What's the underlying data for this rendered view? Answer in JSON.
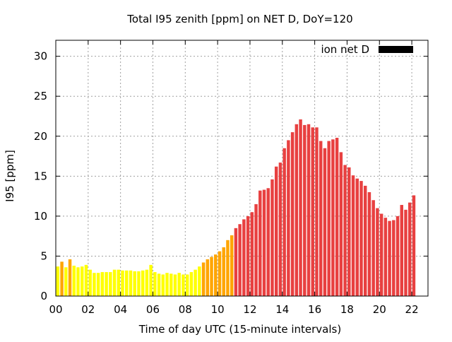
{
  "chart_data": {
    "type": "bar",
    "title": "Total I95 zenith [ppm] on NET D, DoY=120",
    "xlabel": "Time of day UTC (15-minute intervals)",
    "ylabel": "I95 [ppm]",
    "xlim": [
      0,
      92
    ],
    "ylim": [
      0,
      32
    ],
    "x_ticks": [
      {
        "pos": 0,
        "label": "00"
      },
      {
        "pos": 8,
        "label": "02"
      },
      {
        "pos": 16,
        "label": "04"
      },
      {
        "pos": 24,
        "label": "06"
      },
      {
        "pos": 32,
        "label": "08"
      },
      {
        "pos": 40,
        "label": "10"
      },
      {
        "pos": 48,
        "label": "12"
      },
      {
        "pos": 56,
        "label": "14"
      },
      {
        "pos": 64,
        "label": "16"
      },
      {
        "pos": 72,
        "label": "18"
      },
      {
        "pos": 80,
        "label": "20"
      },
      {
        "pos": 88,
        "label": "22"
      }
    ],
    "y_ticks": [
      {
        "pos": 0,
        "label": "0"
      },
      {
        "pos": 5,
        "label": "5"
      },
      {
        "pos": 10,
        "label": "10"
      },
      {
        "pos": 15,
        "label": "15"
      },
      {
        "pos": 20,
        "label": "20"
      },
      {
        "pos": 25,
        "label": "25"
      },
      {
        "pos": 30,
        "label": "30"
      }
    ],
    "grid": true,
    "legend": {
      "label": "ion net D",
      "color": "#000000",
      "placement": "top-right"
    },
    "color_scale": {
      "low": "#ffff00",
      "mid": "#ffa500",
      "high": "#e84040",
      "mid_threshold": 4,
      "high_threshold": 8
    },
    "values": [
      3.7,
      4.3,
      3.6,
      4.6,
      3.8,
      3.6,
      3.7,
      3.9,
      3.3,
      2.9,
      2.9,
      3.0,
      3.0,
      3.0,
      3.3,
      3.3,
      3.2,
      3.2,
      3.2,
      3.1,
      3.1,
      3.2,
      3.3,
      3.9,
      3.0,
      2.8,
      2.7,
      2.9,
      2.8,
      2.7,
      2.9,
      2.7,
      2.7,
      3.0,
      3.3,
      3.7,
      4.2,
      4.6,
      4.9,
      5.2,
      5.6,
      6.1,
      7.0,
      7.6,
      8.5,
      9.0,
      9.6,
      10.0,
      10.5,
      11.5,
      13.2,
      13.3,
      13.5,
      14.6,
      16.2,
      16.7,
      18.5,
      19.5,
      20.5,
      21.5,
      22.1,
      21.4,
      21.5,
      21.1,
      21.1,
      19.4,
      18.5,
      19.4,
      19.6,
      19.8,
      18.0,
      16.4,
      16.1,
      15.1,
      14.7,
      14.4,
      13.8,
      13.0,
      12.0,
      11.0,
      10.3,
      9.8,
      9.4,
      9.5,
      10.0,
      11.4,
      10.8,
      11.7,
      12.6
    ]
  }
}
